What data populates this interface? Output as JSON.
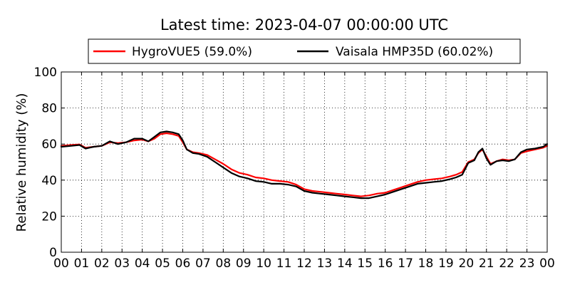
{
  "chart_data": {
    "type": "line",
    "title": "Latest time: 2023-04-07 00:00:00 UTC",
    "xlabel": "",
    "ylabel": "Relative humidity (%)",
    "xlim": [
      0,
      24
    ],
    "ylim": [
      0,
      100
    ],
    "grid": true,
    "legend_position": "top",
    "x_ticks": [
      "00",
      "01",
      "02",
      "03",
      "04",
      "05",
      "06",
      "07",
      "08",
      "09",
      "10",
      "11",
      "12",
      "13",
      "14",
      "15",
      "16",
      "17",
      "18",
      "19",
      "20",
      "21",
      "22",
      "23",
      "00"
    ],
    "y_ticks": [
      "0",
      "20",
      "40",
      "60",
      "80",
      "100"
    ],
    "series": [
      {
        "name": "HygroVUE5 (59.0%)",
        "color": "#ff0000",
        "x": [
          0,
          0.5,
          0.9,
          1.2,
          1.6,
          2.0,
          2.4,
          2.8,
          3.2,
          3.6,
          4.0,
          4.3,
          4.6,
          4.9,
          5.2,
          5.5,
          5.8,
          6.0,
          6.2,
          6.5,
          6.8,
          7.2,
          7.6,
          8.0,
          8.4,
          8.8,
          9.2,
          9.6,
          10.0,
          10.4,
          10.8,
          11.2,
          11.6,
          12.0,
          12.4,
          12.8,
          13.2,
          13.6,
          14.0,
          14.4,
          14.8,
          15.2,
          15.6,
          16.0,
          16.4,
          16.8,
          17.2,
          17.6,
          18.0,
          18.4,
          18.8,
          19.2,
          19.5,
          19.8,
          20.1,
          20.4,
          20.6,
          20.8,
          21.0,
          21.2,
          21.5,
          21.8,
          22.1,
          22.4,
          22.7,
          23.0,
          23.4,
          23.8,
          24.0
        ],
        "values": [
          59.0,
          59.5,
          59.8,
          58.0,
          58.5,
          59.0,
          61.0,
          60.5,
          61.0,
          62.0,
          62.5,
          61.5,
          63.0,
          65.5,
          66.0,
          65.5,
          64.5,
          61.0,
          57.0,
          55.5,
          55.0,
          54.0,
          51.5,
          49.0,
          46.0,
          44.0,
          43.0,
          41.5,
          41.0,
          40.0,
          39.5,
          39.0,
          37.5,
          35.0,
          34.0,
          33.5,
          33.0,
          32.5,
          32.0,
          31.5,
          31.0,
          31.5,
          32.5,
          33.0,
          34.5,
          36.0,
          37.5,
          39.0,
          40.0,
          40.5,
          41.0,
          42.0,
          43.0,
          44.5,
          50.0,
          51.5,
          55.0,
          57.0,
          53.0,
          49.0,
          50.5,
          51.5,
          51.0,
          51.5,
          55.0,
          56.0,
          57.0,
          58.0,
          59.0
        ]
      },
      {
        "name": "Vaisala HMP35D (60.02%)",
        "color": "#000000",
        "x": [
          0,
          0.5,
          0.9,
          1.2,
          1.6,
          2.0,
          2.4,
          2.8,
          3.2,
          3.6,
          4.0,
          4.3,
          4.6,
          4.9,
          5.2,
          5.5,
          5.8,
          6.0,
          6.2,
          6.5,
          6.8,
          7.2,
          7.6,
          8.0,
          8.4,
          8.8,
          9.2,
          9.6,
          10.0,
          10.4,
          10.8,
          11.2,
          11.6,
          12.0,
          12.4,
          12.8,
          13.2,
          13.6,
          14.0,
          14.4,
          14.8,
          15.2,
          15.6,
          16.0,
          16.4,
          16.8,
          17.2,
          17.6,
          18.0,
          18.4,
          18.8,
          19.2,
          19.5,
          19.8,
          20.1,
          20.4,
          20.6,
          20.8,
          21.0,
          21.2,
          21.5,
          21.8,
          22.1,
          22.4,
          22.7,
          23.0,
          23.4,
          23.8,
          24.0
        ],
        "values": [
          58.5,
          59.0,
          59.5,
          57.5,
          58.5,
          59.0,
          61.5,
          60.0,
          61.0,
          63.0,
          63.0,
          61.5,
          64.0,
          66.5,
          67.0,
          66.5,
          65.5,
          62.0,
          57.0,
          55.0,
          54.5,
          53.0,
          50.0,
          47.0,
          44.0,
          42.0,
          41.0,
          39.5,
          39.0,
          38.0,
          38.0,
          37.5,
          36.5,
          34.0,
          33.0,
          32.5,
          32.0,
          31.5,
          31.0,
          30.5,
          30.0,
          30.0,
          31.0,
          32.0,
          33.5,
          35.0,
          36.5,
          38.0,
          38.5,
          39.0,
          39.5,
          40.5,
          41.5,
          43.0,
          49.5,
          51.0,
          55.5,
          57.5,
          52.0,
          48.5,
          50.5,
          51.0,
          50.5,
          51.5,
          55.5,
          57.0,
          57.5,
          58.5,
          60.0
        ]
      }
    ]
  }
}
